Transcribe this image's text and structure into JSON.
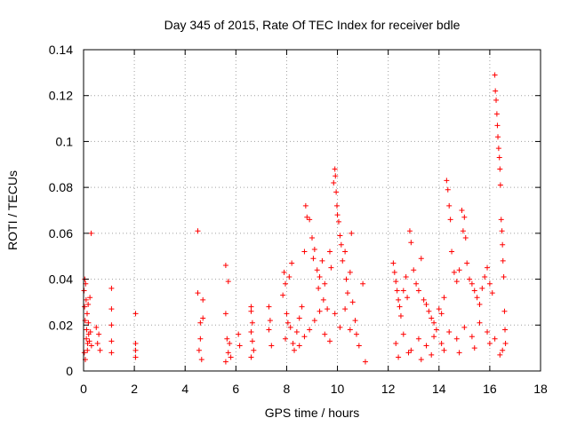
{
  "chart_data": {
    "type": "scatter",
    "title": "Day 345 of 2015, Rate Of TEC Index for receiver bdle",
    "xlabel": "GPS time / hours",
    "ylabel": "ROTI / TECUs",
    "xlim": [
      0,
      18
    ],
    "ylim": [
      0,
      0.14
    ],
    "xticks": [
      0,
      2,
      4,
      6,
      8,
      10,
      12,
      14,
      16,
      18
    ],
    "yticks": [
      0,
      0.02,
      0.04,
      0.06,
      0.08,
      0.1,
      0.12,
      0.14
    ],
    "xtick_labels": [
      "0",
      "2",
      "4",
      "6",
      "8",
      "10",
      "12",
      "14",
      "16",
      "18"
    ],
    "ytick_labels": [
      "0",
      "0.02",
      "0.04",
      "0.06",
      "0.08",
      "0.1",
      "0.12",
      "0.14"
    ],
    "grid": true,
    "marker": "plus",
    "color": "#ff0000",
    "series": [
      {
        "name": "ROTI",
        "points": [
          [
            0.02,
            0.035
          ],
          [
            0.04,
            0.028
          ],
          [
            0.06,
            0.022
          ],
          [
            0.08,
            0.038
          ],
          [
            0.1,
            0.031
          ],
          [
            0.12,
            0.018
          ],
          [
            0.14,
            0.025
          ],
          [
            0.16,
            0.012
          ],
          [
            0.18,
            0.029
          ],
          [
            0.2,
            0.016
          ],
          [
            0.03,
            0.008
          ],
          [
            0.07,
            0.005
          ],
          [
            0.11,
            0.014
          ],
          [
            0.15,
            0.009
          ],
          [
            0.19,
            0.021
          ],
          [
            0.23,
            0.013
          ],
          [
            0.27,
            0.017
          ],
          [
            0.31,
            0.011
          ],
          [
            0.25,
            0.032
          ],
          [
            0.05,
            0.04
          ],
          [
            0.3,
            0.06
          ],
          [
            0.5,
            0.019
          ],
          [
            0.55,
            0.012
          ],
          [
            0.6,
            0.016
          ],
          [
            0.65,
            0.009
          ],
          [
            1.1,
            0.036
          ],
          [
            1.1,
            0.027
          ],
          [
            1.1,
            0.02
          ],
          [
            1.1,
            0.013
          ],
          [
            1.1,
            0.008
          ],
          [
            2.05,
            0.025
          ],
          [
            2.05,
            0.012
          ],
          [
            2.05,
            0.009
          ],
          [
            2.05,
            0.006
          ],
          [
            4.5,
            0.061
          ],
          [
            4.5,
            0.034
          ],
          [
            4.6,
            0.021
          ],
          [
            4.6,
            0.014
          ],
          [
            4.7,
            0.031
          ],
          [
            4.7,
            0.023
          ],
          [
            4.55,
            0.009
          ],
          [
            4.65,
            0.005
          ],
          [
            5.6,
            0.046
          ],
          [
            5.7,
            0.039
          ],
          [
            5.6,
            0.025
          ],
          [
            5.65,
            0.014
          ],
          [
            5.75,
            0.012
          ],
          [
            5.7,
            0.008
          ],
          [
            5.8,
            0.006
          ],
          [
            5.6,
            0.004
          ],
          [
            6.1,
            0.016
          ],
          [
            6.15,
            0.011
          ],
          [
            6.6,
            0.028
          ],
          [
            6.6,
            0.026
          ],
          [
            6.65,
            0.021
          ],
          [
            6.6,
            0.017
          ],
          [
            6.65,
            0.013
          ],
          [
            6.7,
            0.009
          ],
          [
            6.6,
            0.006
          ],
          [
            7.3,
            0.028
          ],
          [
            7.35,
            0.022
          ],
          [
            7.3,
            0.018
          ],
          [
            7.9,
            0.043
          ],
          [
            7.95,
            0.038
          ],
          [
            7.85,
            0.033
          ],
          [
            8.0,
            0.025
          ],
          [
            8.1,
            0.041
          ],
          [
            8.2,
            0.047
          ],
          [
            8.05,
            0.021
          ],
          [
            8.15,
            0.019
          ],
          [
            7.95,
            0.014
          ],
          [
            8.25,
            0.012
          ],
          [
            8.4,
            0.017
          ],
          [
            8.5,
            0.023
          ],
          [
            8.6,
            0.028
          ],
          [
            8.7,
            0.052
          ],
          [
            8.75,
            0.072
          ],
          [
            8.8,
            0.067
          ],
          [
            8.9,
            0.066
          ],
          [
            9.0,
            0.058
          ],
          [
            9.05,
            0.049
          ],
          [
            9.1,
            0.053
          ],
          [
            9.2,
            0.044
          ],
          [
            9.25,
            0.036
          ],
          [
            9.3,
            0.041
          ],
          [
            9.4,
            0.048
          ],
          [
            9.45,
            0.031
          ],
          [
            9.5,
            0.038
          ],
          [
            9.6,
            0.027
          ],
          [
            9.7,
            0.052
          ],
          [
            9.75,
            0.045
          ],
          [
            9.85,
            0.082
          ],
          [
            9.9,
            0.088
          ],
          [
            9.92,
            0.085
          ],
          [
            9.95,
            0.078
          ],
          [
            9.98,
            0.072
          ],
          [
            10.0,
            0.068
          ],
          [
            10.05,
            0.065
          ],
          [
            10.1,
            0.059
          ],
          [
            10.15,
            0.055
          ],
          [
            10.2,
            0.048
          ],
          [
            10.3,
            0.052
          ],
          [
            10.35,
            0.04
          ],
          [
            10.4,
            0.034
          ],
          [
            10.5,
            0.043
          ],
          [
            10.55,
            0.06
          ],
          [
            10.6,
            0.03
          ],
          [
            10.7,
            0.022
          ],
          [
            10.75,
            0.016
          ],
          [
            10.85,
            0.011
          ],
          [
            11.0,
            0.038
          ],
          [
            11.1,
            0.004
          ],
          [
            8.3,
            0.009
          ],
          [
            8.5,
            0.011
          ],
          [
            8.7,
            0.015
          ],
          [
            8.9,
            0.018
          ],
          [
            9.1,
            0.022
          ],
          [
            9.3,
            0.026
          ],
          [
            9.5,
            0.016
          ],
          [
            9.7,
            0.013
          ],
          [
            9.9,
            0.025
          ],
          [
            10.1,
            0.019
          ],
          [
            10.3,
            0.027
          ],
          [
            10.5,
            0.018
          ],
          [
            12.2,
            0.047
          ],
          [
            12.25,
            0.043
          ],
          [
            12.3,
            0.039
          ],
          [
            12.35,
            0.035
          ],
          [
            12.4,
            0.031
          ],
          [
            12.45,
            0.028
          ],
          [
            12.5,
            0.024
          ],
          [
            12.6,
            0.035
          ],
          [
            12.7,
            0.041
          ],
          [
            12.75,
            0.032
          ],
          [
            12.85,
            0.061
          ],
          [
            12.9,
            0.056
          ],
          [
            13.0,
            0.044
          ],
          [
            13.1,
            0.038
          ],
          [
            13.2,
            0.035
          ],
          [
            13.3,
            0.049
          ],
          [
            13.4,
            0.031
          ],
          [
            13.5,
            0.029
          ],
          [
            13.6,
            0.026
          ],
          [
            13.7,
            0.023
          ],
          [
            13.8,
            0.021
          ],
          [
            13.9,
            0.018
          ],
          [
            14.0,
            0.027
          ],
          [
            14.1,
            0.025
          ],
          [
            14.2,
            0.032
          ],
          [
            14.3,
            0.083
          ],
          [
            14.35,
            0.079
          ],
          [
            14.4,
            0.072
          ],
          [
            14.45,
            0.066
          ],
          [
            14.5,
            0.052
          ],
          [
            14.6,
            0.043
          ],
          [
            14.7,
            0.039
          ],
          [
            14.8,
            0.044
          ],
          [
            14.9,
            0.07
          ],
          [
            14.95,
            0.061
          ],
          [
            15.0,
            0.067
          ],
          [
            15.05,
            0.058
          ],
          [
            15.1,
            0.047
          ],
          [
            15.2,
            0.04
          ],
          [
            15.3,
            0.038
          ],
          [
            15.4,
            0.035
          ],
          [
            15.5,
            0.032
          ],
          [
            15.6,
            0.029
          ],
          [
            15.7,
            0.036
          ],
          [
            15.8,
            0.041
          ],
          [
            15.9,
            0.045
          ],
          [
            16.0,
            0.038
          ],
          [
            16.1,
            0.034
          ],
          [
            16.2,
            0.129
          ],
          [
            16.22,
            0.122
          ],
          [
            16.25,
            0.118
          ],
          [
            16.28,
            0.112
          ],
          [
            16.3,
            0.107
          ],
          [
            16.32,
            0.102
          ],
          [
            16.35,
            0.097
          ],
          [
            16.38,
            0.093
          ],
          [
            16.4,
            0.088
          ],
          [
            16.42,
            0.081
          ],
          [
            16.45,
            0.066
          ],
          [
            16.48,
            0.061
          ],
          [
            16.5,
            0.055
          ],
          [
            16.52,
            0.048
          ],
          [
            16.55,
            0.041
          ],
          [
            16.58,
            0.026
          ],
          [
            16.6,
            0.018
          ],
          [
            16.62,
            0.012
          ],
          [
            12.3,
            0.012
          ],
          [
            12.6,
            0.016
          ],
          [
            12.9,
            0.009
          ],
          [
            13.2,
            0.014
          ],
          [
            13.5,
            0.011
          ],
          [
            13.8,
            0.015
          ],
          [
            14.1,
            0.012
          ],
          [
            14.4,
            0.017
          ],
          [
            14.7,
            0.014
          ],
          [
            15.0,
            0.019
          ],
          [
            15.3,
            0.015
          ],
          [
            15.6,
            0.021
          ],
          [
            15.9,
            0.017
          ],
          [
            16.2,
            0.014
          ],
          [
            16.5,
            0.009
          ],
          [
            12.4,
            0.006
          ],
          [
            12.8,
            0.008
          ],
          [
            13.3,
            0.005
          ],
          [
            13.7,
            0.007
          ],
          [
            14.2,
            0.009
          ],
          [
            14.8,
            0.008
          ],
          [
            15.4,
            0.01
          ],
          [
            16.0,
            0.012
          ],
          [
            16.4,
            0.007
          ],
          [
            7.4,
            0.011
          ]
        ]
      }
    ]
  }
}
